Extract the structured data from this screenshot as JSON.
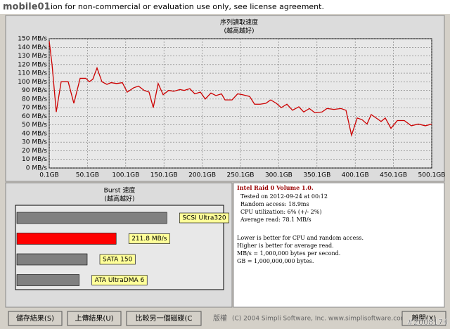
{
  "window": {
    "banner": "ion for non-commercial or evaluation use only, see license agreement.",
    "logo": "mobile01",
    "watermark": "#2008174"
  },
  "info": {
    "title": "Intel Raid 0 Volume 1.0.",
    "lines": [
      "Tested on 2012-09-24 at 00:12",
      "Random access: 18.9ms",
      "CPU utilization: 6% (+/- 2%)",
      "Average read: 78.1 MB/s"
    ],
    "notes": [
      "Lower is better for CPU and random access.",
      "Higher is better for average read.",
      "MB/s = 1,000,000 bytes per second.",
      "GB = 1,000,000,000 bytes."
    ]
  },
  "buttons": {
    "save": "儲存結果(S)",
    "upload": "上傳結果(U)",
    "compare": "比較另一個磁碟(C",
    "copyright": "版權",
    "copyright_text": "(C) 2004 Simpli Software, Inc. www.simplisoftware.com",
    "exit": "離開(X)"
  },
  "chart_data": [
    {
      "type": "line",
      "title": "序列讀取速度",
      "subtitle": "(越高越好)",
      "color": "#cc0000",
      "grid": true,
      "x": [
        0.1,
        3.8,
        9.3,
        15.7,
        24.9,
        32.3,
        40.5,
        47.9,
        52.5,
        57.1,
        62.6,
        69.0,
        75.5,
        81.0,
        88.3,
        95.7,
        102.1,
        110.4,
        116.8,
        124.2,
        130.6,
        136.1,
        142.5,
        149.0,
        156.3,
        162.8,
        171.0,
        176.6,
        183.9,
        190.4,
        197.7,
        204.1,
        211.5,
        218.0,
        225.3,
        229.9,
        239.1,
        246.4,
        252.9,
        262.1,
        268.5,
        275.8,
        283.2,
        289.6,
        297.0,
        303.4,
        310.8,
        318.1,
        326.4,
        332.8,
        340.2,
        347.5,
        356.7,
        363.2,
        372.3,
        381.5,
        388.0,
        395.3,
        402.7,
        409.1,
        415.5,
        421.0,
        427.5,
        433.9,
        439.4,
        446.8,
        455.1,
        464.3,
        473.4,
        482.6,
        491.8,
        500.1
      ],
      "values": [
        147,
        120,
        65,
        100,
        100,
        75,
        104,
        104,
        100,
        103,
        116,
        100,
        97,
        99,
        98,
        99,
        88,
        93,
        95,
        90,
        88,
        70,
        98,
        85,
        90,
        89,
        91,
        90,
        92,
        86,
        88,
        80,
        87,
        84,
        86,
        79,
        79,
        86,
        85,
        83,
        74,
        74,
        75,
        79,
        75,
        70,
        74,
        67,
        71,
        65,
        69,
        64,
        65,
        69,
        68,
        69,
        67,
        38,
        58,
        56,
        51,
        62,
        58,
        54,
        58,
        46,
        55,
        55,
        49,
        51,
        49,
        51
      ],
      "xlim": [
        0.1,
        500.1
      ],
      "ylim": [
        0,
        150
      ],
      "xticks": [
        {
          "value": 0.1,
          "label": "0.1GB"
        },
        {
          "value": 50.1,
          "label": "50.1GB"
        },
        {
          "value": 100.1,
          "label": "100.1GB"
        },
        {
          "value": 150.1,
          "label": "150.1GB"
        },
        {
          "value": 200.1,
          "label": "200.1GB"
        },
        {
          "value": 250.1,
          "label": "250.1GB"
        },
        {
          "value": 300.1,
          "label": "300.1GB"
        },
        {
          "value": 350.1,
          "label": "350.1GB"
        },
        {
          "value": 400.1,
          "label": "400.1GB"
        },
        {
          "value": 450.1,
          "label": "450.1GB"
        },
        {
          "value": 500.1,
          "label": "500.1GB"
        }
      ],
      "yticks": [
        {
          "value": 0,
          "label": "0 MB/s"
        },
        {
          "value": 10,
          "label": "10 MB/s"
        },
        {
          "value": 20,
          "label": "20 MB/s"
        },
        {
          "value": 30,
          "label": "30 MB/s"
        },
        {
          "value": 40,
          "label": "40 MB/s"
        },
        {
          "value": 50,
          "label": "50 MB/s"
        },
        {
          "value": 60,
          "label": "60 MB/s"
        },
        {
          "value": 70,
          "label": "70 MB/s"
        },
        {
          "value": 80,
          "label": "80 MB/s"
        },
        {
          "value": 90,
          "label": "90 MB/s"
        },
        {
          "value": 100,
          "label": "100 MB/s"
        },
        {
          "value": 110,
          "label": "110 MB/s"
        },
        {
          "value": 120,
          "label": "120 MB/s"
        },
        {
          "value": 130,
          "label": "130 MB/s"
        },
        {
          "value": 140,
          "label": "140 MB/s"
        },
        {
          "value": 150,
          "label": "150 MB/s"
        }
      ]
    },
    {
      "type": "hbar",
      "title": "Burst 速度",
      "subtitle": "(越高越好)",
      "categories": [
        "SCSI Ultra320",
        null,
        "SATA 150",
        "ATA UltraDMA 6"
      ],
      "values": [
        320,
        211.8,
        150,
        133
      ],
      "value_labels": [
        null,
        "211.8 MB/s",
        null,
        null
      ],
      "colors": [
        "#808080",
        "#ff0000",
        "#808080",
        "#808080"
      ],
      "xlim": [
        0,
        441
      ]
    }
  ]
}
